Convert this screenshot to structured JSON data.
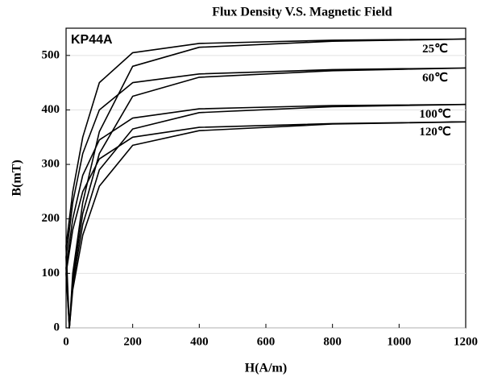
{
  "chart_data": {
    "type": "line",
    "title": "Flux Density V.S. Magnetic Field",
    "annotation": "KP44A",
    "x_label": "H(A/m)",
    "y_label": "B(mT)",
    "xlim": [
      0,
      1200
    ],
    "ylim": [
      0,
      550
    ],
    "xticks": [
      0,
      200,
      400,
      600,
      800,
      1000,
      1200
    ],
    "yticks": [
      0,
      100,
      200,
      300,
      400,
      500
    ],
    "grid": true,
    "series": [
      {
        "name": "25℃",
        "color": "#000000",
        "x": [
          1200,
          800,
          400,
          200,
          100,
          50,
          20,
          0,
          10,
          20,
          50,
          100,
          200,
          400,
          800,
          1200
        ],
        "values": [
          530,
          528,
          522,
          505,
          450,
          350,
          250,
          150,
          0,
          100,
          230,
          360,
          480,
          515,
          526,
          530
        ]
      },
      {
        "name": "60℃",
        "color": "#000000",
        "x": [
          1200,
          800,
          400,
          200,
          100,
          50,
          20,
          0,
          10,
          20,
          50,
          100,
          200,
          400,
          800,
          1200
        ],
        "values": [
          477,
          474,
          466,
          450,
          400,
          320,
          230,
          130,
          0,
          90,
          210,
          320,
          425,
          460,
          472,
          477
        ]
      },
      {
        "name": "100℃",
        "color": "#000000",
        "x": [
          1200,
          800,
          400,
          200,
          100,
          50,
          20,
          0,
          10,
          20,
          50,
          100,
          200,
          400,
          800,
          1200
        ],
        "values": [
          410,
          408,
          402,
          385,
          345,
          280,
          200,
          110,
          0,
          80,
          190,
          290,
          365,
          395,
          406,
          410
        ]
      },
      {
        "name": "120℃",
        "color": "#000000",
        "x": [
          1200,
          800,
          400,
          200,
          100,
          50,
          20,
          0,
          10,
          20,
          50,
          100,
          200,
          400,
          800,
          1200
        ],
        "values": [
          378,
          375,
          368,
          350,
          310,
          250,
          180,
          100,
          0,
          70,
          170,
          260,
          335,
          362,
          374,
          378
        ]
      }
    ]
  }
}
